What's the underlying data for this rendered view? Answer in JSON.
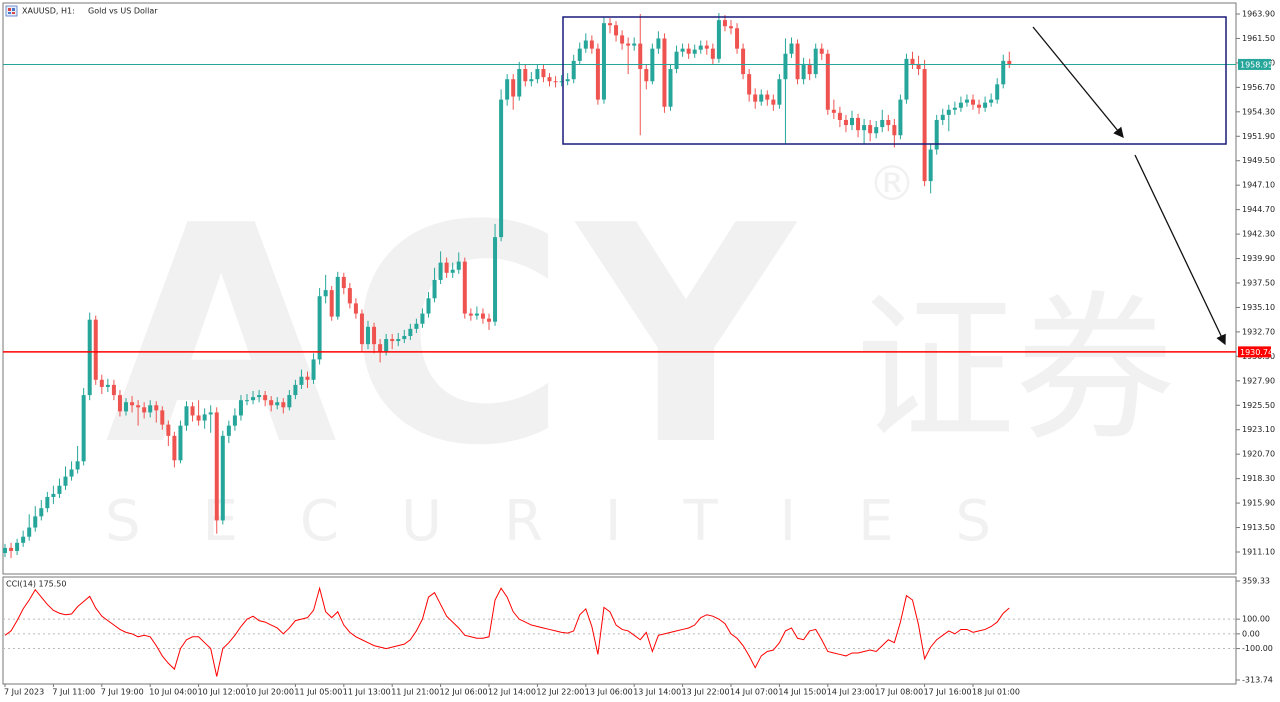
{
  "chart_data": [
    {
      "type": "candlestick",
      "title": "XAUUSD, H1:",
      "subtitle": "Gold vs US Dollar",
      "watermark": {
        "logo": "ACY",
        "mark": "®",
        "chinese": "证券",
        "sub": "SECURITIES"
      },
      "categories": [
        "7 Jul 2023",
        null,
        null,
        null,
        null,
        null,
        null,
        null,
        "7 Jul 11:00",
        null,
        null,
        null,
        null,
        null,
        null,
        null,
        "7 Jul 19:00",
        null,
        null,
        null,
        null,
        null,
        null,
        null,
        "10 Jul 04:00",
        null,
        null,
        null,
        null,
        null,
        null,
        null,
        "10 Jul 12:00",
        null,
        null,
        null,
        null,
        null,
        null,
        null,
        "10 Jul 20:00",
        null,
        null,
        null,
        null,
        null,
        null,
        null,
        "11 Jul 05:00",
        null,
        null,
        null,
        null,
        null,
        null,
        null,
        "11 Jul 13:00",
        null,
        null,
        null,
        null,
        null,
        null,
        null,
        "11 Jul 21:00",
        null,
        null,
        null,
        null,
        null,
        null,
        null,
        "12 Jul 06:00",
        null,
        null,
        null,
        null,
        null,
        null,
        null,
        "12 Jul 14:00",
        null,
        null,
        null,
        null,
        null,
        null,
        null,
        "12 Jul 22:00",
        null,
        null,
        null,
        null,
        null,
        null,
        null,
        "13 Jul 06:00",
        null,
        null,
        null,
        null,
        null,
        null,
        null,
        "13 Jul 14:00",
        null,
        null,
        null,
        null,
        null,
        null,
        null,
        "13 Jul 22:00",
        null,
        null,
        null,
        null,
        null,
        null,
        null,
        "14 Jul 07:00",
        null,
        null,
        null,
        null,
        null,
        null,
        null,
        "14 Jul 15:00",
        null,
        null,
        null,
        null,
        null,
        null,
        null,
        "14 Jul 23:00",
        null,
        null,
        null,
        null,
        null,
        null,
        null,
        "17 Jul 08:00",
        null,
        null,
        null,
        null,
        null,
        null,
        null,
        "17 Jul 16:00",
        null,
        null,
        null,
        null,
        null,
        null,
        null,
        "18 Jul 01:00",
        null,
        null,
        null,
        null,
        null,
        null
      ],
      "open": [
        1911.0,
        1911.5,
        1911.2,
        1912.0,
        1912.6,
        1913.5,
        1914.6,
        1915.4,
        1916.5,
        1916.8,
        1917.6,
        1918.5,
        1919.2,
        1920.0,
        1926.5,
        1933.9,
        1928.0,
        1927.3,
        1927.5,
        1926.5,
        1924.9,
        1925.8,
        1925.5,
        1925.3,
        1924.8,
        1925.5,
        1925.0,
        1923.6,
        1922.5,
        1920.1,
        1923.5,
        1925.4,
        1924.5,
        1924.0,
        1924.6,
        1924.8,
        1914.2,
        1922.5,
        1923.5,
        1924.5,
        1926.0,
        1926.0,
        1926.3,
        1926.5,
        1926.0,
        1925.5,
        1925.8,
        1925.3,
        1926.5,
        1927.5,
        1928.3,
        1928.0,
        1930.0,
        1936.2,
        1936.8,
        1934.2,
        1938.1,
        1937.0,
        1935.5,
        1934.5,
        1931.5,
        1933.2,
        1931.5,
        1930.8,
        1932.0,
        1931.8,
        1932.0,
        1932.3,
        1933.0,
        1933.5,
        1934.5,
        1936.0,
        1937.8,
        1939.5,
        1938.5,
        1938.8,
        1939.6,
        1934.5,
        1934.3,
        1934.5,
        1934.0,
        1933.7,
        1942.0,
        1955.5,
        1957.5,
        1955.8,
        1958.5,
        1957.3,
        1957.5,
        1958.5,
        1957.7,
        1957.3,
        1957.2,
        1957.3,
        1957.5,
        1959.3,
        1960.5,
        1961.3,
        1960.5,
        1955.5,
        1963.0,
        1962.8,
        1961.8,
        1961.0,
        1960.8,
        1961.0,
        1958.5,
        1957.3,
        1960.5,
        1961.5,
        1954.8,
        1958.5,
        1960.2,
        1960.5,
        1960.0,
        1960.4,
        1960.8,
        1960.5,
        1959.5,
        1963.3,
        1962.7,
        1962.5,
        1960.5,
        1958.0,
        1956.0,
        1955.3,
        1956.0,
        1955.5,
        1955.0,
        1957.5,
        1960.0,
        1961.0,
        1957.5,
        1959.0,
        1958.0,
        1960.5,
        1960.0,
        1954.5,
        1954.2,
        1953.5,
        1953.0,
        1953.7,
        1952.5,
        1953.0,
        1952.2,
        1952.8,
        1953.5,
        1953.0,
        1952.0,
        1955.5,
        1959.5,
        1959.0,
        1958.5,
        1947.5,
        1950.6,
        1953.5,
        1954.0,
        1954.5,
        1954.7,
        1955.2,
        1955.5,
        1955.0,
        1954.7,
        1955.2,
        1955.5,
        1957.0,
        1959.3
      ],
      "high": [
        1911.9,
        1912.0,
        1912.4,
        1913.2,
        1914.8,
        1915.6,
        1916.2,
        1917.0,
        1917.6,
        1918.3,
        1919.5,
        1920.0,
        1921.5,
        1927.2,
        1934.6,
        1934.3,
        1928.5,
        1928.1,
        1928.0,
        1927.0,
        1926.2,
        1926.4,
        1926.0,
        1925.8,
        1926.0,
        1925.9,
        1925.4,
        1924.0,
        1922.9,
        1924.0,
        1925.9,
        1925.8,
        1926.0,
        1925.2,
        1925.5,
        1925.3,
        1923.0,
        1924.0,
        1925.2,
        1926.5,
        1926.6,
        1926.9,
        1927.0,
        1926.9,
        1926.4,
        1926.3,
        1926.2,
        1927.0,
        1928.0,
        1929.0,
        1928.8,
        1930.6,
        1937.0,
        1938.3,
        1937.2,
        1938.6,
        1938.5,
        1937.5,
        1936.0,
        1934.9,
        1933.8,
        1933.6,
        1932.0,
        1932.5,
        1932.5,
        1932.6,
        1932.9,
        1933.5,
        1934.0,
        1935.0,
        1936.6,
        1939.0,
        1940.6,
        1940.0,
        1939.5,
        1940.5,
        1940.0,
        1935.0,
        1935.2,
        1935.0,
        1934.5,
        1943.3,
        1956.5,
        1958.0,
        1958.0,
        1959.2,
        1959.0,
        1958.2,
        1959.0,
        1958.9,
        1958.1,
        1957.8,
        1957.9,
        1958.1,
        1959.9,
        1961.1,
        1962.0,
        1961.8,
        1961.0,
        1963.6,
        1963.5,
        1963.2,
        1962.3,
        1961.6,
        1961.6,
        1963.9,
        1959.0,
        1961.0,
        1962.2,
        1962.0,
        1959.0,
        1960.8,
        1961.0,
        1961.0,
        1960.9,
        1961.3,
        1961.3,
        1961.0,
        1964.0,
        1963.8,
        1963.3,
        1963.0,
        1961.0,
        1958.5,
        1956.6,
        1956.5,
        1956.4,
        1956.0,
        1958.0,
        1961.5,
        1961.6,
        1961.4,
        1959.6,
        1959.5,
        1961.0,
        1961.0,
        1960.4,
        1955.5,
        1954.8,
        1954.0,
        1954.4,
        1954.1,
        1953.6,
        1953.5,
        1953.4,
        1954.5,
        1954.0,
        1953.6,
        1956.0,
        1960.0,
        1960.2,
        1959.8,
        1959.4,
        1951.2,
        1954.0,
        1954.6,
        1955.0,
        1955.3,
        1955.8,
        1956.0,
        1956.0,
        1955.5,
        1955.8,
        1956.1,
        1957.6,
        1959.9,
        1960.2
      ],
      "low": [
        1910.6,
        1910.5,
        1910.8,
        1911.6,
        1912.2,
        1913.1,
        1914.2,
        1915.0,
        1915.8,
        1916.4,
        1917.2,
        1918.1,
        1918.8,
        1919.6,
        1926.0,
        1927.5,
        1926.6,
        1926.8,
        1926.0,
        1924.4,
        1924.5,
        1924.8,
        1923.5,
        1924.2,
        1924.3,
        1923.8,
        1923.1,
        1921.5,
        1919.4,
        1919.8,
        1923.0,
        1923.9,
        1923.5,
        1923.2,
        1922.8,
        1912.9,
        1913.8,
        1921.8,
        1923.0,
        1924.0,
        1925.5,
        1925.6,
        1925.8,
        1925.4,
        1924.9,
        1925.1,
        1924.7,
        1925.0,
        1926.1,
        1927.1,
        1927.2,
        1927.6,
        1929.5,
        1935.5,
        1933.8,
        1933.9,
        1936.4,
        1935.0,
        1934.0,
        1930.8,
        1931.0,
        1930.6,
        1929.7,
        1930.4,
        1931.0,
        1931.3,
        1931.6,
        1931.9,
        1932.6,
        1933.1,
        1934.1,
        1935.6,
        1937.4,
        1938.0,
        1938.0,
        1938.4,
        1934.0,
        1933.8,
        1933.9,
        1933.5,
        1932.9,
        1933.3,
        1941.6,
        1954.9,
        1954.5,
        1955.4,
        1956.8,
        1956.8,
        1957.1,
        1957.2,
        1956.8,
        1956.7,
        1956.8,
        1956.9,
        1957.1,
        1958.9,
        1960.1,
        1960.0,
        1955.0,
        1955.1,
        1962.0,
        1961.2,
        1960.4,
        1958.0,
        1960.3,
        1952.0,
        1956.5,
        1957.0,
        1960.0,
        1954.2,
        1954.4,
        1958.1,
        1959.7,
        1959.5,
        1959.6,
        1960.0,
        1959.9,
        1958.9,
        1959.1,
        1962.2,
        1961.9,
        1960.0,
        1957.5,
        1955.3,
        1954.6,
        1954.9,
        1954.9,
        1954.4,
        1954.6,
        1951.2,
        1959.6,
        1957.0,
        1957.0,
        1957.4,
        1957.6,
        1959.4,
        1954.0,
        1953.6,
        1952.8,
        1952.3,
        1952.5,
        1951.8,
        1951.2,
        1951.4,
        1951.7,
        1952.3,
        1952.4,
        1950.8,
        1951.6,
        1955.1,
        1958.5,
        1957.9,
        1947.0,
        1946.3,
        1950.1,
        1953.0,
        1952.4,
        1954.0,
        1954.3,
        1954.8,
        1954.5,
        1954.1,
        1954.3,
        1954.8,
        1955.1,
        1956.6,
        1958.6
      ],
      "close": [
        1911.5,
        1911.2,
        1912.0,
        1912.6,
        1913.5,
        1914.6,
        1915.4,
        1916.5,
        1916.8,
        1917.6,
        1918.5,
        1919.2,
        1920.0,
        1926.5,
        1933.9,
        1928.0,
        1927.3,
        1927.5,
        1926.5,
        1924.9,
        1925.8,
        1925.5,
        1925.3,
        1924.8,
        1925.5,
        1925.0,
        1923.6,
        1922.5,
        1920.1,
        1923.5,
        1925.4,
        1924.5,
        1924.0,
        1924.6,
        1924.8,
        1914.2,
        1922.5,
        1923.5,
        1924.5,
        1926.0,
        1926.0,
        1926.3,
        1926.5,
        1926.0,
        1925.5,
        1925.8,
        1925.3,
        1926.5,
        1927.5,
        1928.3,
        1928.0,
        1930.0,
        1936.2,
        1936.8,
        1934.2,
        1938.1,
        1937.0,
        1935.5,
        1934.5,
        1931.5,
        1933.2,
        1931.5,
        1930.8,
        1932.0,
        1931.8,
        1932.0,
        1932.3,
        1933.0,
        1933.5,
        1934.5,
        1936.0,
        1937.8,
        1939.5,
        1938.5,
        1938.8,
        1939.6,
        1934.5,
        1934.3,
        1934.5,
        1934.0,
        1933.7,
        1942.0,
        1955.5,
        1957.5,
        1955.8,
        1958.5,
        1957.3,
        1957.5,
        1958.5,
        1957.7,
        1957.3,
        1957.2,
        1957.3,
        1957.5,
        1959.3,
        1960.5,
        1961.3,
        1960.5,
        1955.5,
        1963.0,
        1962.8,
        1961.8,
        1961.0,
        1960.8,
        1961.0,
        1958.5,
        1957.3,
        1960.5,
        1961.5,
        1954.8,
        1958.5,
        1960.2,
        1960.5,
        1960.0,
        1960.4,
        1960.8,
        1960.5,
        1959.5,
        1963.3,
        1962.7,
        1962.5,
        1960.5,
        1958.0,
        1956.0,
        1955.3,
        1956.0,
        1955.5,
        1955.0,
        1957.5,
        1960.0,
        1961.0,
        1957.5,
        1959.0,
        1958.0,
        1960.5,
        1960.0,
        1954.5,
        1954.2,
        1953.5,
        1953.0,
        1953.7,
        1952.5,
        1953.0,
        1952.2,
        1952.8,
        1953.5,
        1953.0,
        1952.0,
        1955.5,
        1959.5,
        1959.0,
        1958.5,
        1947.5,
        1950.6,
        1953.5,
        1954.0,
        1954.5,
        1954.7,
        1955.2,
        1955.5,
        1955.0,
        1954.7,
        1955.2,
        1955.5,
        1957.0,
        1959.3,
        1958.95
      ],
      "up_color": "#26a69a",
      "down_color": "#ef5350",
      "ylim": [
        1908.94,
        1964.98
      ],
      "yticks": [
        {
          "value": 1963.9,
          "label": "1963.90"
        },
        {
          "value": 1961.5,
          "label": "1961.50"
        },
        {
          "value": 1959.1,
          "label": "1959.10"
        },
        {
          "value": 1956.7,
          "label": "1956.70"
        },
        {
          "value": 1954.3,
          "label": "1954.30"
        },
        {
          "value": 1951.9,
          "label": "1951.90"
        },
        {
          "value": 1949.5,
          "label": "1949.50"
        },
        {
          "value": 1947.1,
          "label": "1947.10"
        },
        {
          "value": 1944.7,
          "label": "1944.70"
        },
        {
          "value": 1942.3,
          "label": "1942.30"
        },
        {
          "value": 1939.9,
          "label": "1939.90"
        },
        {
          "value": 1937.5,
          "label": "1937.50"
        },
        {
          "value": 1935.1,
          "label": "1935.10"
        },
        {
          "value": 1932.7,
          "label": "1932.70"
        },
        {
          "value": 1930.3,
          "label": "1930.30"
        },
        {
          "value": 1927.9,
          "label": "1927.90"
        },
        {
          "value": 1925.5,
          "label": "1925.50"
        },
        {
          "value": 1923.1,
          "label": "1923.10"
        },
        {
          "value": 1920.7,
          "label": "1920.70"
        },
        {
          "value": 1918.3,
          "label": "1918.30"
        },
        {
          "value": 1915.9,
          "label": "1915.90"
        },
        {
          "value": 1913.5,
          "label": "1913.50"
        },
        {
          "value": 1911.1,
          "label": "1911.10"
        }
      ],
      "hlines": [
        {
          "value": 1958.95,
          "color": "#26a69a"
        },
        {
          "value": 1930.74,
          "color": "#ff0000"
        }
      ]
    },
    {
      "type": "line",
      "title": "CCI(14) 175.50",
      "color": "#ff0000",
      "values": [
        -10,
        20,
        90,
        170,
        230,
        300,
        250,
        200,
        160,
        140,
        130,
        135,
        185,
        220,
        255,
        175,
        120,
        90,
        60,
        30,
        10,
        0,
        -20,
        -10,
        -20,
        -80,
        -150,
        -200,
        -240,
        -100,
        -40,
        -20,
        -20,
        -60,
        -100,
        -290,
        -100,
        -60,
        -10,
        50,
        100,
        120,
        90,
        80,
        60,
        40,
        0,
        40,
        90,
        100,
        110,
        160,
        310,
        150,
        110,
        150,
        60,
        10,
        -20,
        -40,
        -60,
        -80,
        -90,
        -100,
        -90,
        -80,
        -70,
        -40,
        20,
        100,
        250,
        280,
        200,
        120,
        80,
        40,
        -10,
        -20,
        -30,
        -30,
        -20,
        230,
        310,
        250,
        150,
        100,
        80,
        60,
        50,
        40,
        30,
        20,
        10,
        5,
        20,
        130,
        170,
        50,
        -140,
        180,
        150,
        60,
        30,
        20,
        -10,
        -40,
        10,
        -120,
        -10,
        0,
        10,
        20,
        30,
        40,
        60,
        110,
        130,
        120,
        100,
        70,
        0,
        -30,
        -80,
        -150,
        -230,
        -150,
        -120,
        -110,
        -60,
        20,
        40,
        -30,
        -40,
        20,
        30,
        -40,
        -120,
        -130,
        -140,
        -150,
        -130,
        -130,
        -120,
        -110,
        -120,
        -80,
        -40,
        -60,
        80,
        260,
        230,
        60,
        -170,
        -90,
        -40,
        -10,
        20,
        0,
        30,
        30,
        10,
        20,
        30,
        50,
        80,
        140,
        175.5
      ],
      "ylim": [
        -313.74,
        359.33
      ],
      "yticks": [
        359.33,
        {
          "value": 100,
          "label": "100.00"
        },
        {
          "value": 0,
          "label": "0.00"
        },
        {
          "value": -100,
          "label": "-100.00"
        },
        -313.74
      ]
    }
  ]
}
